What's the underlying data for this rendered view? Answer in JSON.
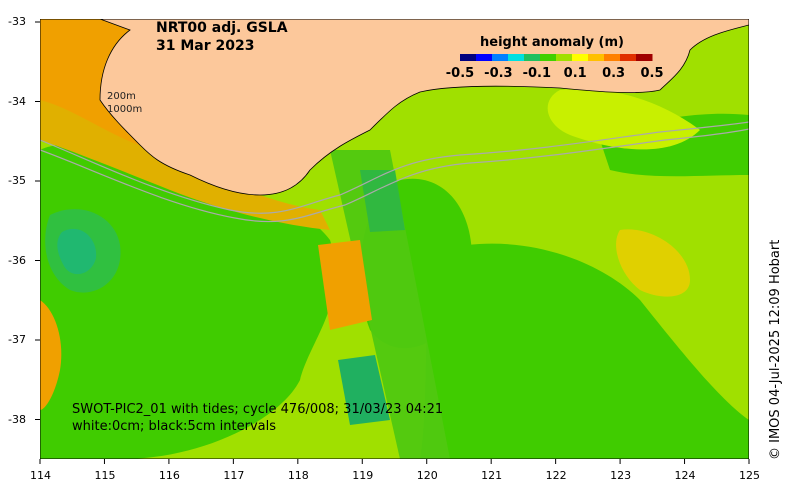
{
  "title_line1": "NRT00 adj. GSLA",
  "title_line2": "31 Mar 2023",
  "colorbar": {
    "title": "height anomaly (m)",
    "ticks": [
      "-0.5",
      "-0.3",
      "-0.1",
      "0.1",
      "0.3",
      "0.5"
    ],
    "colors": [
      "#00007f",
      "#0000ff",
      "#0080ff",
      "#00e0e0",
      "#20c060",
      "#40d000",
      "#a0e000",
      "#ffff00",
      "#ffc000",
      "#ff8000",
      "#e03000",
      "#a00000"
    ]
  },
  "contour_labels": [
    "200m",
    "1000m"
  ],
  "swath_note_line1": "SWOT-PIC2_01 with tides; cycle 476/008; 31/03/23 04:21",
  "swath_note_line2": "white:0cm; black:5cm intervals",
  "x_axis": [
    "114",
    "115",
    "116",
    "117",
    "118",
    "119",
    "120",
    "121",
    "122",
    "123",
    "124",
    "125"
  ],
  "y_axis": [
    "-33",
    "-34",
    "-35",
    "-36",
    "-37",
    "-38"
  ],
  "credit": "© IMOS 04-Jul-2025 12:09 Hobart",
  "colors": {
    "land": "#fcc89b",
    "ocean_green": "#40cc00",
    "yellow_green": "#a0e000",
    "lime": "#c8f000",
    "orange": "#f0a000",
    "teal": "#20b870"
  }
}
